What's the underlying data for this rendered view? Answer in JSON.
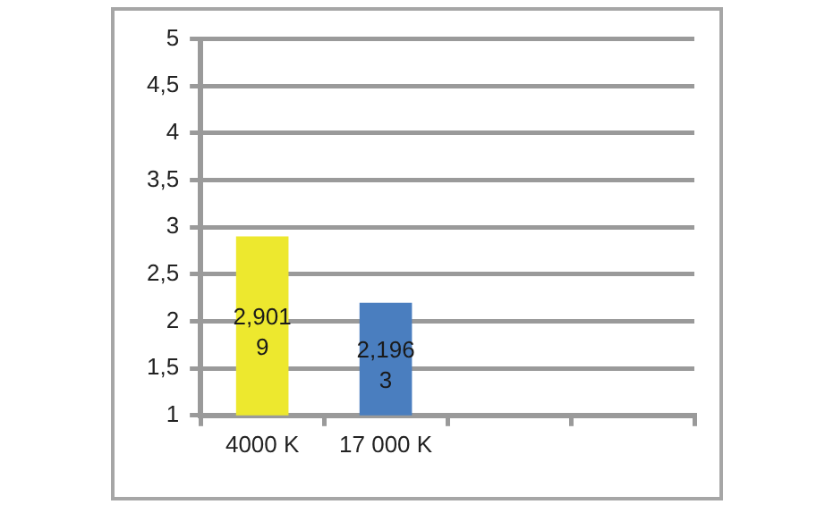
{
  "chart_data": {
    "type": "bar",
    "categories": [
      "4000 K",
      "17 000 K",
      null,
      null
    ],
    "series": [
      {
        "values": [
          2.9019,
          2.1963,
          null,
          null
        ],
        "colors": [
          "#ede82e",
          "#4a7ebf",
          null,
          null
        ]
      }
    ],
    "value_labels": [
      "2,9019",
      "2,1963",
      null,
      null
    ],
    "ylim": [
      1,
      5
    ],
    "yticks": [
      1,
      {
        "value": 1.5,
        "label": "1,5"
      },
      2,
      {
        "value": 2.5,
        "label": "2,5"
      },
      3,
      {
        "value": 3.5,
        "label": "3,5"
      },
      4,
      {
        "value": 4.5,
        "label": "4,5"
      },
      5
    ],
    "grid": "y",
    "legend": false
  }
}
